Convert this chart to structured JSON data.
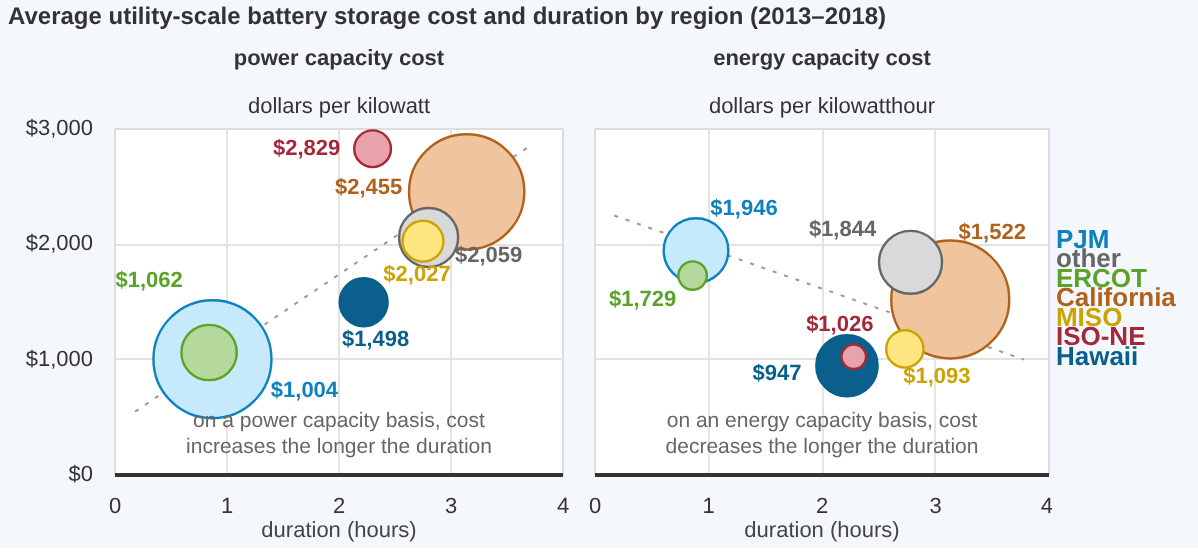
{
  "chart_data": [
    {
      "type": "bubble",
      "title": "power capacity cost",
      "subtitle": "dollars per kilowatt",
      "xlabel": "duration (hours)",
      "annotations": [
        "Average utility-scale battery storage cost and duration by region (2013–2018)",
        "on a power capacity basis, cost\nincreases the longer the duration"
      ],
      "xlim": [
        0,
        4
      ],
      "xticks": [
        0,
        1,
        2,
        3,
        4
      ],
      "ylim": [
        0,
        3000
      ],
      "yticks": [
        {
          "value": 0,
          "label": "$0"
        },
        {
          "value": 1000,
          "label": "$1,000"
        },
        {
          "value": 2000,
          "label": "$2,000"
        },
        {
          "value": 3000,
          "label": "$3,000"
        }
      ],
      "grid": true,
      "legend": false,
      "series": [
        {
          "color": "#c6e9fb",
          "x": [
            0.87
          ],
          "values": [
            1004
          ],
          "sizes": [
            1
          ],
          "value_labels": [
            "$1,004"
          ]
        },
        {
          "color": "#d9d9d9",
          "x": [
            2.8
          ],
          "values": [
            2059
          ],
          "sizes": [
            0.25
          ],
          "value_labels": [
            "$2,059"
          ]
        },
        {
          "color": "#b5d99c",
          "x": [
            0.84
          ],
          "values": [
            1062
          ],
          "sizes": [
            0.22
          ],
          "value_labels": [
            "$1,062"
          ]
        },
        {
          "color": "#f0c49c",
          "x": [
            3.14
          ],
          "values": [
            2455
          ],
          "sizes": [
            0.955
          ],
          "value_labels": [
            "$2,455"
          ]
        },
        {
          "color": "#ffe681",
          "x": [
            2.75
          ],
          "values": [
            2027
          ],
          "sizes": [
            0.12
          ],
          "value_labels": [
            "$2,027"
          ]
        },
        {
          "color": "#e8a2ab",
          "x": [
            2.3
          ],
          "values": [
            2829
          ],
          "sizes": [
            0.097
          ],
          "value_labels": [
            "$2,829"
          ]
        },
        {
          "color": "#0a5f8c",
          "x": [
            2.22
          ],
          "values": [
            1498
          ],
          "sizes": [
            0.165
          ],
          "value_labels": [
            "$1,498"
          ]
        },
        {
          "type": "line",
          "color": "#999999",
          "line_style": "dotted",
          "x": [
            0.18,
            3.7
          ],
          "values": [
            550,
            2850
          ]
        }
      ]
    },
    {
      "type": "bubble",
      "title": "energy capacity cost",
      "subtitle": "dollars per kilowatthour",
      "xlabel": "duration (hours)",
      "annotations": [
        "on an energy capacity basis, cost\ndecreases the longer the duration"
      ],
      "xlim": [
        0,
        4
      ],
      "xticks": [
        0,
        1,
        2,
        3,
        4
      ],
      "ylim": [
        0,
        3000
      ],
      "yticks": [
        0,
        1000,
        2000,
        3000
      ],
      "tick_labels": "x",
      "grid": true,
      "legend": "right",
      "series": [
        {
          "name": "PJM",
          "color": "#c6e9fb",
          "x": [
            0.89
          ],
          "values": [
            1946
          ],
          "sizes": [
            0.3
          ],
          "value_labels": [
            "$1,946"
          ]
        },
        {
          "name": "other",
          "color": "#d9d9d9",
          "x": [
            2.78
          ],
          "values": [
            1844
          ],
          "sizes": [
            0.285
          ],
          "value_labels": [
            "$1,844"
          ]
        },
        {
          "name": "ERCOT",
          "color": "#b5d99c",
          "x": [
            0.86
          ],
          "values": [
            1729
          ],
          "sizes": [
            0.058
          ],
          "value_labels": [
            "$1,729"
          ]
        },
        {
          "name": "California",
          "color": "#f0c49c",
          "x": [
            3.13
          ],
          "values": [
            1522
          ],
          "sizes": [
            1
          ],
          "value_labels": [
            "$1,522"
          ]
        },
        {
          "name": "MISO",
          "color": "#ffe681",
          "x": [
            2.73
          ],
          "values": [
            1093
          ],
          "sizes": [
            0.1
          ],
          "value_labels": [
            "$1,093"
          ]
        },
        {
          "name": "ISO-NE",
          "color": "#e8a2ab",
          "x": [
            2.28
          ],
          "values": [
            1026
          ],
          "sizes": [
            0.043
          ],
          "value_labels": [
            "$1,026"
          ]
        },
        {
          "name": "Hawaii",
          "color": "#0a5f8c",
          "x": [
            2.22
          ],
          "values": [
            947
          ],
          "sizes": [
            0.27
          ],
          "value_labels": [
            "$947"
          ]
        },
        {
          "type": "line",
          "color": "#999999",
          "line_style": "dotted",
          "x": [
            0.17,
            3.78
          ],
          "values": [
            2250,
            1000
          ]
        }
      ]
    }
  ]
}
